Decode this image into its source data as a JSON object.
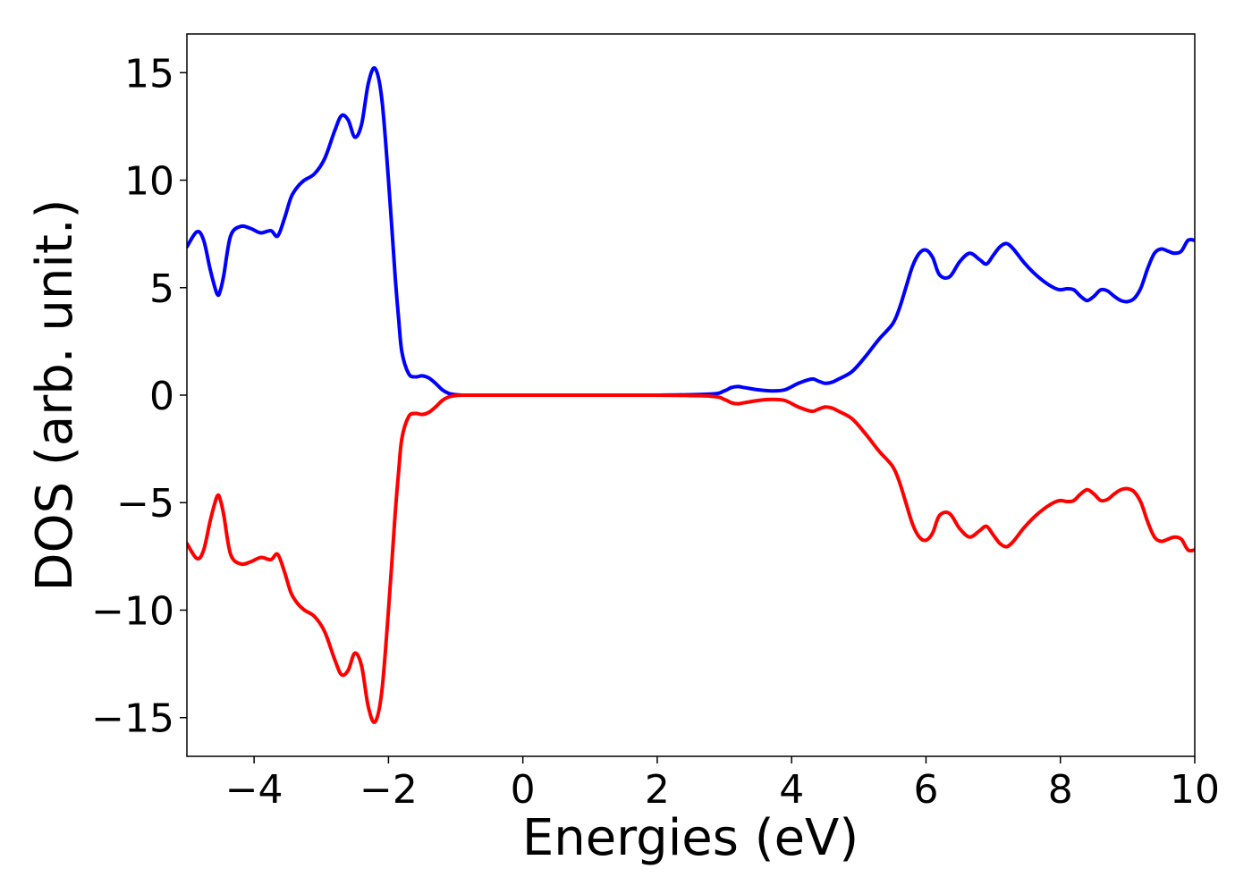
{
  "chart_data": {
    "type": "line",
    "title": "",
    "xlabel": "Energies (eV)",
    "ylabel": "DOS (arb. unit.)",
    "xlim": [
      -5,
      10
    ],
    "ylim": [
      -16.8,
      16.8
    ],
    "xticks": [
      -4,
      -2,
      0,
      2,
      4,
      6,
      8,
      10
    ],
    "xtick_labels": [
      "−4",
      "−2",
      "0",
      "2",
      "4",
      "6",
      "8",
      "10"
    ],
    "yticks": [
      15,
      10,
      5,
      0,
      -5,
      -10,
      -15
    ],
    "ytick_labels": [
      "15",
      "10",
      "5",
      "0",
      "−5",
      "−10",
      "−15"
    ],
    "grid": false,
    "legend": "none",
    "series": [
      {
        "color": "#0000ff",
        "x": [
          -5.0,
          -4.85,
          -4.75,
          -4.65,
          -4.55,
          -4.5,
          -4.45,
          -4.35,
          -4.2,
          -4.05,
          -3.9,
          -3.75,
          -3.65,
          -3.55,
          -3.45,
          -3.35,
          -3.25,
          -3.1,
          -2.95,
          -2.8,
          -2.7,
          -2.6,
          -2.5,
          -2.4,
          -2.3,
          -2.2,
          -2.1,
          -2.0,
          -1.9,
          -1.85,
          -1.8,
          -1.7,
          -1.6,
          -1.5,
          -1.4,
          -1.3,
          -1.2,
          -1.1,
          -1.0,
          -0.9,
          -0.8,
          -0.7,
          -0.6,
          -0.5,
          0.0,
          1.0,
          2.0,
          2.8,
          3.0,
          3.1,
          3.2,
          3.3,
          3.5,
          3.7,
          3.9,
          4.1,
          4.3,
          4.4,
          4.5,
          4.6,
          4.7,
          4.9,
          5.1,
          5.3,
          5.5,
          5.6,
          5.7,
          5.8,
          5.9,
          6.0,
          6.1,
          6.2,
          6.35,
          6.5,
          6.65,
          6.8,
          6.9,
          7.0,
          7.1,
          7.2,
          7.3,
          7.45,
          7.6,
          7.75,
          7.9,
          8.0,
          8.1,
          8.2,
          8.3,
          8.4,
          8.5,
          8.6,
          8.7,
          8.8,
          8.9,
          9.0,
          9.1,
          9.2,
          9.3,
          9.4,
          9.5,
          9.6,
          9.7,
          9.8,
          9.9,
          10.0
        ],
        "values": [
          6.9,
          7.6,
          7.2,
          5.8,
          4.7,
          4.9,
          5.6,
          7.4,
          7.85,
          7.75,
          7.55,
          7.65,
          7.4,
          8.2,
          9.2,
          9.7,
          10.0,
          10.3,
          11.0,
          12.3,
          13.0,
          12.8,
          12.0,
          12.6,
          14.5,
          15.2,
          13.8,
          10.0,
          5.5,
          3.6,
          2.0,
          1.0,
          0.85,
          0.9,
          0.8,
          0.55,
          0.25,
          0.08,
          0.02,
          0.0,
          0.0,
          0.0,
          0.0,
          0.0,
          0.0,
          0.0,
          0.0,
          0.05,
          0.2,
          0.35,
          0.4,
          0.35,
          0.25,
          0.2,
          0.25,
          0.55,
          0.75,
          0.65,
          0.55,
          0.6,
          0.75,
          1.1,
          1.8,
          2.6,
          3.3,
          4.0,
          5.0,
          6.0,
          6.6,
          6.75,
          6.4,
          5.6,
          5.5,
          6.2,
          6.6,
          6.3,
          6.1,
          6.5,
          6.9,
          7.05,
          6.8,
          6.2,
          5.7,
          5.3,
          5.0,
          4.9,
          4.95,
          4.9,
          4.6,
          4.4,
          4.6,
          4.9,
          4.85,
          4.6,
          4.4,
          4.35,
          4.5,
          5.0,
          5.9,
          6.6,
          6.8,
          6.7,
          6.6,
          6.7,
          7.2,
          7.2
        ]
      },
      {
        "color": "#ff0000",
        "x": [
          -5.0,
          -4.85,
          -4.75,
          -4.65,
          -4.55,
          -4.5,
          -4.45,
          -4.35,
          -4.2,
          -4.05,
          -3.9,
          -3.75,
          -3.65,
          -3.55,
          -3.45,
          -3.35,
          -3.25,
          -3.1,
          -2.95,
          -2.8,
          -2.7,
          -2.6,
          -2.5,
          -2.4,
          -2.3,
          -2.2,
          -2.1,
          -2.0,
          -1.9,
          -1.85,
          -1.8,
          -1.7,
          -1.6,
          -1.5,
          -1.4,
          -1.3,
          -1.2,
          -1.1,
          -1.0,
          -0.9,
          -0.8,
          -0.7,
          -0.6,
          -0.5,
          0.0,
          1.0,
          2.0,
          2.8,
          3.0,
          3.1,
          3.2,
          3.3,
          3.5,
          3.7,
          3.9,
          4.1,
          4.3,
          4.4,
          4.5,
          4.6,
          4.7,
          4.9,
          5.1,
          5.3,
          5.5,
          5.6,
          5.7,
          5.8,
          5.9,
          6.0,
          6.1,
          6.2,
          6.35,
          6.5,
          6.65,
          6.8,
          6.9,
          7.0,
          7.1,
          7.2,
          7.3,
          7.45,
          7.6,
          7.75,
          7.9,
          8.0,
          8.1,
          8.2,
          8.3,
          8.4,
          8.5,
          8.6,
          8.7,
          8.8,
          8.9,
          9.0,
          9.1,
          9.2,
          9.3,
          9.4,
          9.5,
          9.6,
          9.7,
          9.8,
          9.9,
          10.0
        ],
        "values": [
          -6.9,
          -7.6,
          -7.2,
          -5.8,
          -4.7,
          -4.9,
          -5.6,
          -7.4,
          -7.85,
          -7.75,
          -7.55,
          -7.65,
          -7.4,
          -8.2,
          -9.2,
          -9.7,
          -10.0,
          -10.3,
          -11.0,
          -12.3,
          -13.0,
          -12.8,
          -12.0,
          -12.6,
          -14.5,
          -15.2,
          -13.8,
          -10.0,
          -5.5,
          -3.6,
          -2.0,
          -1.0,
          -0.85,
          -0.9,
          -0.8,
          -0.55,
          -0.25,
          -0.08,
          -0.02,
          0.0,
          0.0,
          0.0,
          0.0,
          0.0,
          0.0,
          0.0,
          0.0,
          -0.05,
          -0.2,
          -0.35,
          -0.4,
          -0.35,
          -0.25,
          -0.2,
          -0.25,
          -0.55,
          -0.75,
          -0.65,
          -0.55,
          -0.6,
          -0.75,
          -1.1,
          -1.8,
          -2.6,
          -3.3,
          -4.0,
          -5.0,
          -6.0,
          -6.6,
          -6.75,
          -6.4,
          -5.6,
          -5.5,
          -6.2,
          -6.6,
          -6.3,
          -6.1,
          -6.5,
          -6.9,
          -7.05,
          -6.8,
          -6.2,
          -5.7,
          -5.3,
          -5.0,
          -4.9,
          -4.95,
          -4.9,
          -4.6,
          -4.4,
          -4.6,
          -4.9,
          -4.85,
          -4.6,
          -4.4,
          -4.35,
          -4.5,
          -5.0,
          -5.9,
          -6.6,
          -6.8,
          -6.7,
          -6.6,
          -6.7,
          -7.2,
          -7.2
        ]
      }
    ]
  }
}
